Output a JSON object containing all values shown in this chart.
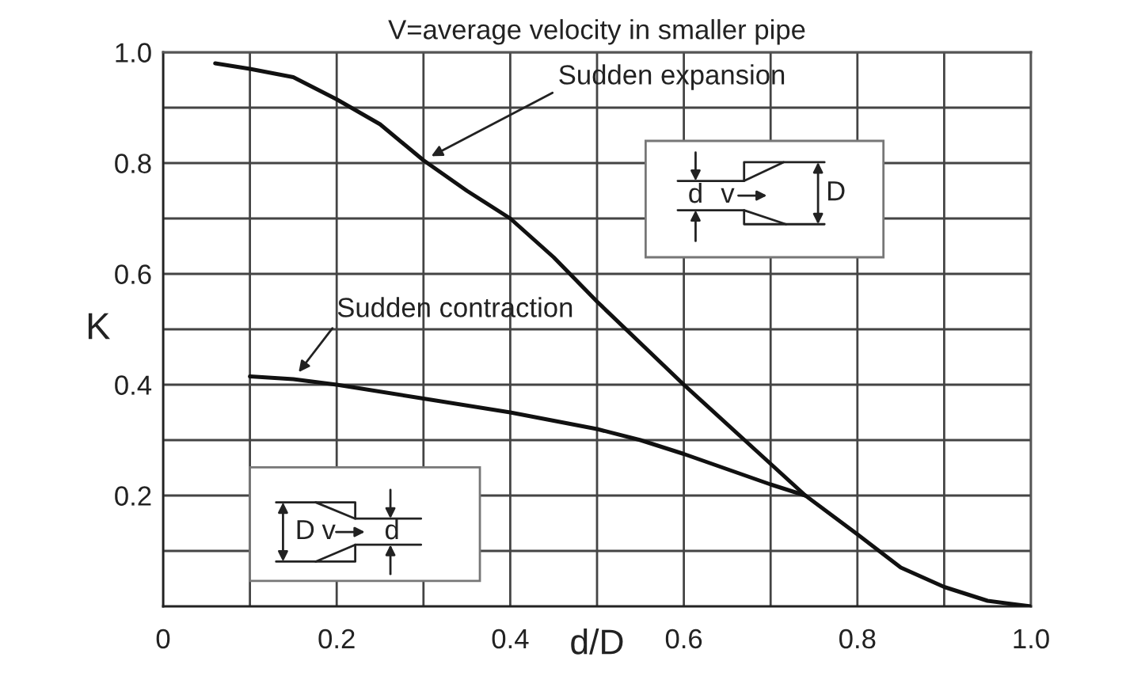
{
  "chart_data": {
    "type": "line",
    "title": "V=average velocity in smaller pipe",
    "xlabel": "d/D",
    "ylabel": "K",
    "xlim": [
      0,
      1
    ],
    "ylim": [
      0,
      1
    ],
    "xticks": [
      0,
      {
        "value": 0.1,
        "label": null
      },
      0.2,
      {
        "value": 0.3,
        "label": null
      },
      0.4,
      {
        "value": 0.5,
        "label": null
      },
      0.6,
      {
        "value": 0.7,
        "label": null
      },
      0.8,
      {
        "value": 0.9,
        "label": null
      },
      {
        "value": 1,
        "label": "1.0"
      }
    ],
    "yticks": [
      {
        "value": 0.1,
        "label": null
      },
      0.2,
      {
        "value": 0.3,
        "label": null
      },
      0.4,
      {
        "value": 0.5,
        "label": null
      },
      0.6,
      {
        "value": 0.7,
        "label": null
      },
      0.8,
      {
        "value": 0.9,
        "label": null
      },
      {
        "value": 1,
        "label": "1.0"
      }
    ],
    "grid": true,
    "line_style": "solid",
    "series": [
      {
        "color": "#111111",
        "x": [
          0.06,
          0.1,
          0.15,
          0.2,
          0.25,
          0.3,
          0.35,
          0.4,
          0.45,
          0.5,
          0.56,
          0.6,
          0.67,
          0.74,
          0.8,
          0.85,
          0.9,
          0.95,
          1.0
        ],
        "values": [
          0.98,
          0.97,
          0.955,
          0.915,
          0.87,
          0.805,
          0.75,
          0.7,
          0.63,
          0.55,
          0.46,
          0.4,
          0.3,
          0.2,
          0.13,
          0.07,
          0.035,
          0.01,
          0.0
        ]
      },
      {
        "color": "#111111",
        "x": [
          0.1,
          0.15,
          0.2,
          0.3,
          0.4,
          0.5,
          0.55,
          0.6,
          0.7,
          0.74
        ],
        "values": [
          0.415,
          0.41,
          0.4,
          0.375,
          0.35,
          0.32,
          0.3,
          0.275,
          0.22,
          0.2
        ]
      }
    ],
    "annotations": [
      {
        "text": "Sudden expansion",
        "x": 0.3,
        "y": 0.805
      },
      {
        "text": "Sudden contraction",
        "x": 0.15,
        "y": 0.41
      },
      "d",
      "v",
      "D",
      "D",
      "v",
      "d"
    ]
  }
}
